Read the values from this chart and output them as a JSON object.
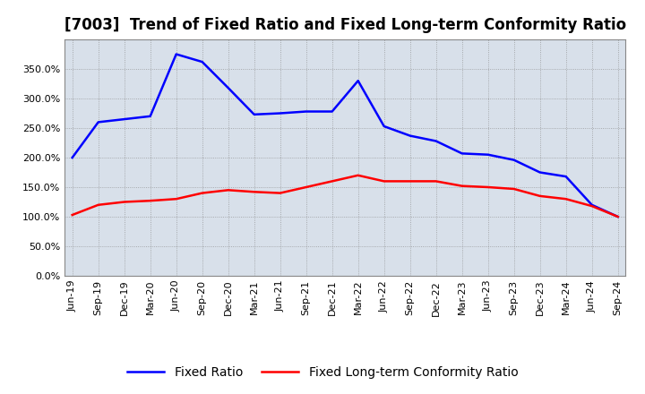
{
  "title": "[7003]  Trend of Fixed Ratio and Fixed Long-term Conformity Ratio",
  "x_labels": [
    "Jun-19",
    "Sep-19",
    "Dec-19",
    "Mar-20",
    "Jun-20",
    "Sep-20",
    "Dec-20",
    "Mar-21",
    "Jun-21",
    "Sep-21",
    "Dec-21",
    "Mar-22",
    "Jun-22",
    "Sep-22",
    "Dec-22",
    "Mar-23",
    "Jun-23",
    "Sep-23",
    "Dec-23",
    "Mar-24",
    "Jun-24",
    "Sep-24"
  ],
  "fixed_ratio": [
    200.0,
    260.0,
    265.0,
    270.0,
    375.0,
    362.0,
    318.0,
    273.0,
    275.0,
    278.0,
    278.0,
    330.0,
    253.0,
    237.0,
    228.0,
    207.0,
    205.0,
    196.0,
    175.0,
    168.0,
    120.0,
    100.0
  ],
  "fixed_lt_ratio": [
    103.0,
    120.0,
    125.0,
    127.0,
    130.0,
    140.0,
    145.0,
    142.0,
    140.0,
    150.0,
    160.0,
    170.0,
    160.0,
    160.0,
    160.0,
    152.0,
    150.0,
    147.0,
    135.0,
    130.0,
    118.0,
    100.0
  ],
  "fixed_ratio_color": "#0000FF",
  "fixed_lt_ratio_color": "#FF0000",
  "background_color": "#FFFFFF",
  "plot_bg_color": "#D8E0EA",
  "grid_color": "#888888",
  "ylim": [
    0.0,
    400.0
  ],
  "yticks": [
    0.0,
    50.0,
    100.0,
    150.0,
    200.0,
    250.0,
    300.0,
    350.0
  ],
  "legend_fixed_ratio": "Fixed Ratio",
  "legend_fixed_lt_ratio": "Fixed Long-term Conformity Ratio",
  "line_width": 1.8,
  "title_fontsize": 12,
  "tick_fontsize": 8,
  "legend_fontsize": 10
}
